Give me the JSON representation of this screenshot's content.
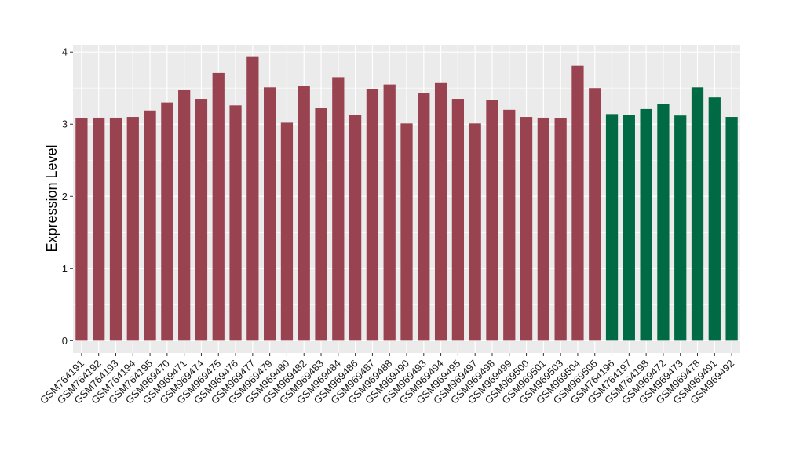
{
  "chart_data": {
    "type": "bar",
    "ylabel": "Expression Level",
    "xlabel": "",
    "ylim": [
      -0.17,
      4.1
    ],
    "yticks": [
      0,
      1,
      2,
      3,
      4
    ],
    "grid": true,
    "legend": "none",
    "colors": {
      "group1": "#9a4350",
      "group2": "#006a44",
      "panel": "#ebebeb",
      "grid": "#ffffff"
    },
    "categories": [
      "GSM764191",
      "GSM764192",
      "GSM764193",
      "GSM764194",
      "GSM764195",
      "GSM969470",
      "GSM969471",
      "GSM969474",
      "GSM969475",
      "GSM969476",
      "GSM969477",
      "GSM969479",
      "GSM969480",
      "GSM969482",
      "GSM969483",
      "GSM969484",
      "GSM969486",
      "GSM969487",
      "GSM969488",
      "GSM969490",
      "GSM969493",
      "GSM969494",
      "GSM969495",
      "GSM969497",
      "GSM969498",
      "GSM969499",
      "GSM969500",
      "GSM969501",
      "GSM969503",
      "GSM969504",
      "GSM969505",
      "GSM764196",
      "GSM764197",
      "GSM764198",
      "GSM969472",
      "GSM969473",
      "GSM969478",
      "GSM969491",
      "GSM969492"
    ],
    "values": [
      3.08,
      3.09,
      3.09,
      3.1,
      3.19,
      3.3,
      3.47,
      3.35,
      3.71,
      3.26,
      3.93,
      3.51,
      3.02,
      3.53,
      3.22,
      3.65,
      3.13,
      3.49,
      3.55,
      3.01,
      3.43,
      3.57,
      3.35,
      3.01,
      3.33,
      3.2,
      3.1,
      3.09,
      3.08,
      3.81,
      3.5,
      3.14,
      3.13,
      3.21,
      3.28,
      3.12,
      3.51,
      3.37,
      3.1
    ],
    "groups": [
      1,
      1,
      1,
      1,
      1,
      1,
      1,
      1,
      1,
      1,
      1,
      1,
      1,
      1,
      1,
      1,
      1,
      1,
      1,
      1,
      1,
      1,
      1,
      1,
      1,
      1,
      1,
      1,
      1,
      1,
      1,
      2,
      2,
      2,
      2,
      2,
      2,
      2,
      2
    ]
  }
}
